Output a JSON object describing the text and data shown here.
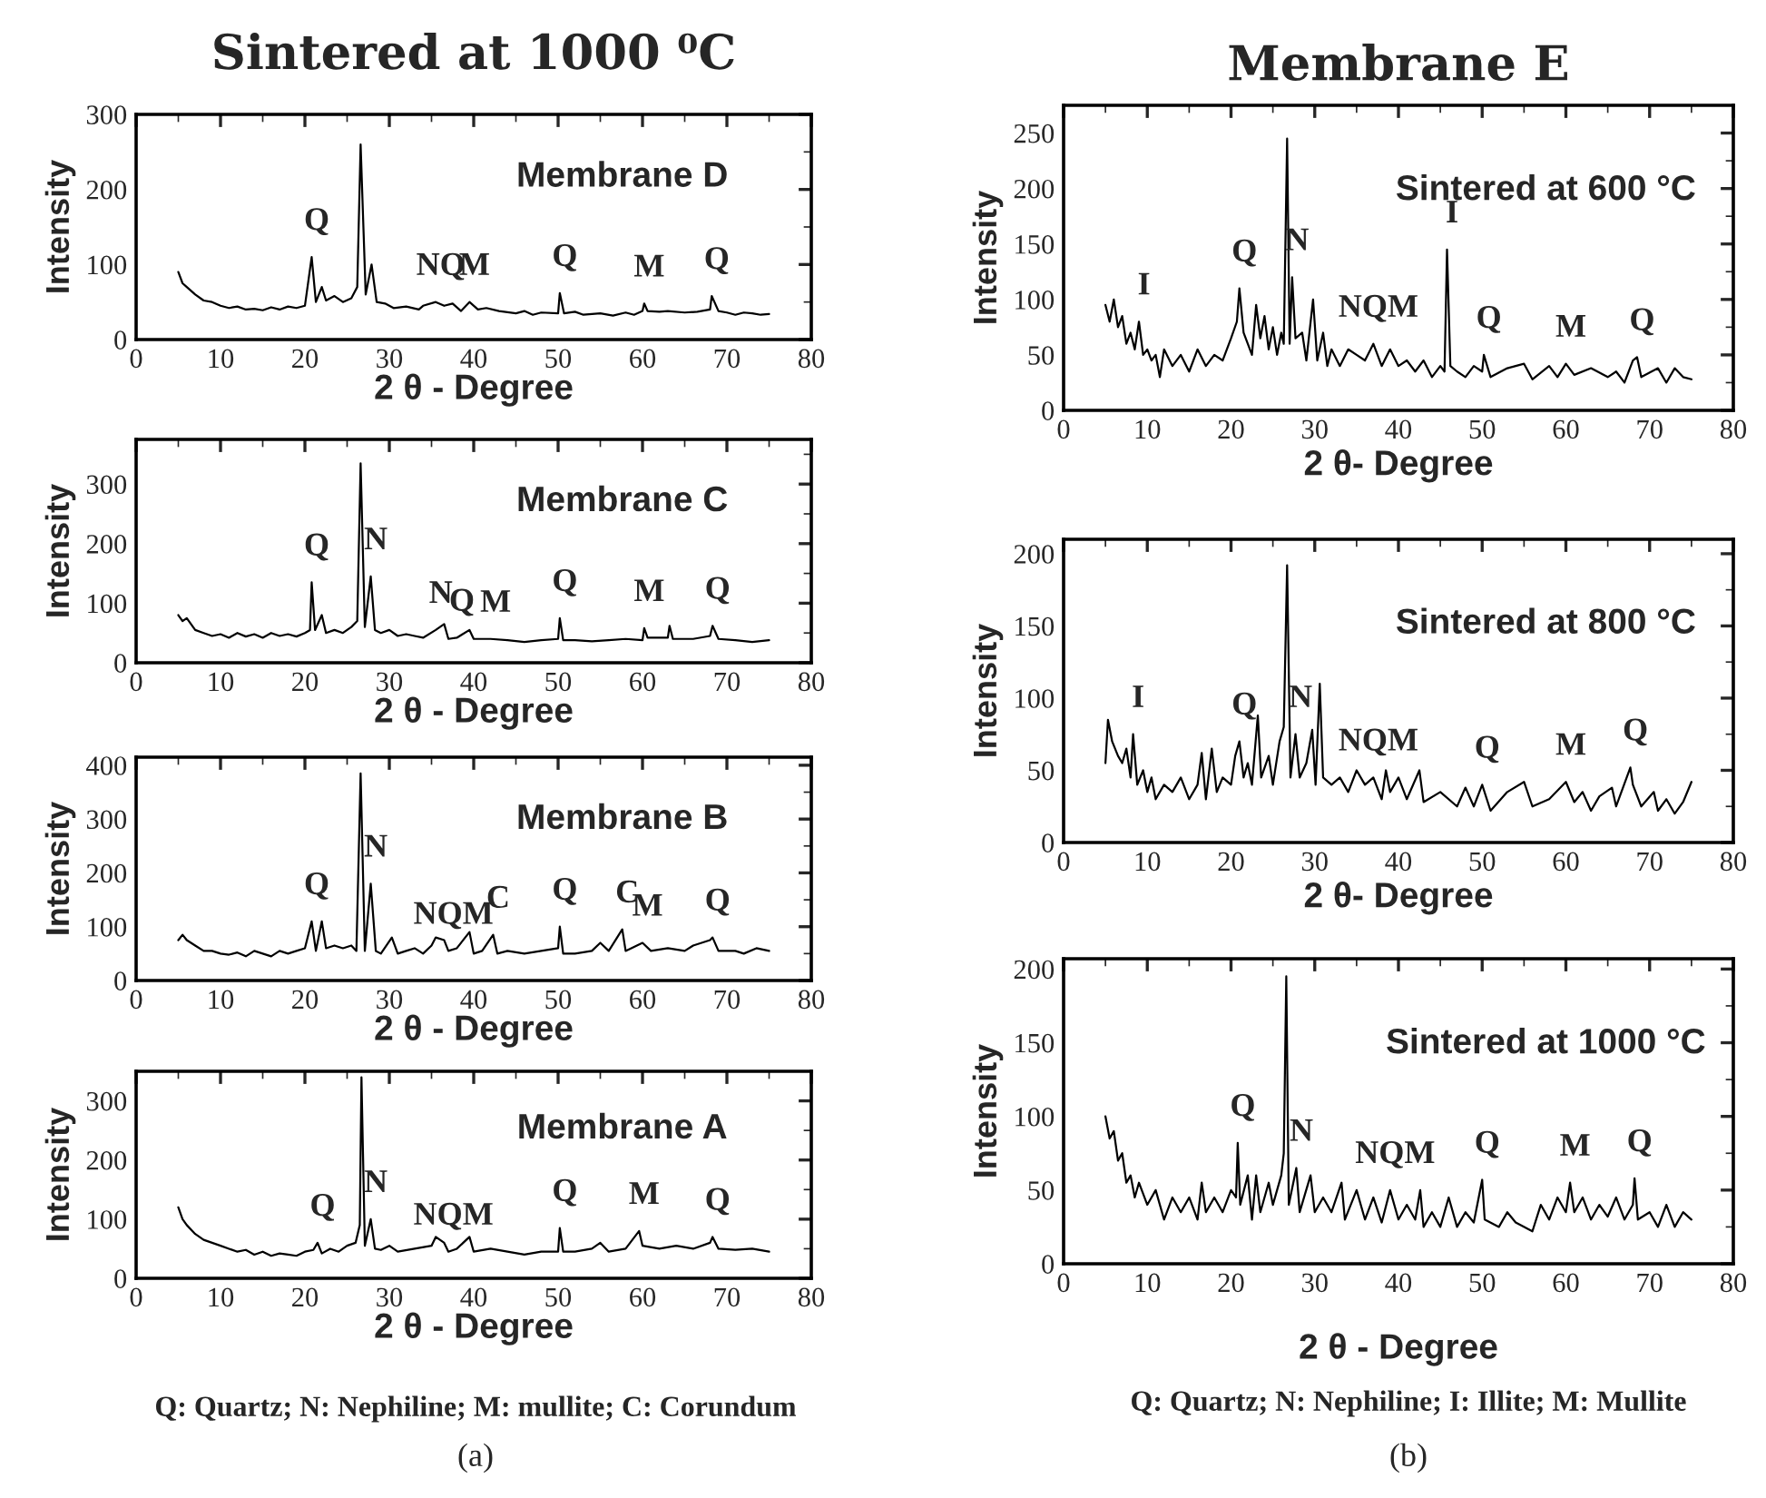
{
  "chart_data": [
    {
      "type": "line",
      "title": "Sintered at 1000 ⁰C",
      "xlabel": "2 θ - Degree",
      "ylabel": "Intensity",
      "xlim": [
        0,
        80
      ],
      "xticks": [
        0,
        10,
        20,
        30,
        40,
        50,
        60,
        70,
        80
      ],
      "ylim": [
        0,
        300
      ],
      "yticks": [
        0,
        100,
        200,
        300
      ],
      "series": [
        {
          "color": "#000000",
          "x": [
            5,
            5.5,
            6,
            7,
            8,
            9,
            10,
            11,
            12,
            13,
            14,
            15,
            16,
            17,
            18,
            19,
            20,
            20.8,
            21.3,
            22,
            22.5,
            23.5,
            24.5,
            25.5,
            26.2,
            26.6,
            27.2,
            27.9,
            28.5,
            29.5,
            30.5,
            32,
            33.5,
            34,
            35.5,
            36.5,
            37.5,
            38.5,
            39.5,
            40.5,
            41.5,
            43,
            45,
            46,
            47,
            48,
            50,
            50.2,
            50.7,
            52,
            53,
            55,
            56.5,
            58,
            59,
            60,
            60.2,
            60.6,
            62,
            63,
            65,
            66.5,
            68,
            68.2,
            69,
            70,
            71,
            72,
            73,
            74,
            75
          ],
          "values": [
            90,
            75,
            70,
            60,
            52,
            50,
            45,
            42,
            44,
            40,
            41,
            39,
            43,
            40,
            44,
            42,
            45,
            110,
            50,
            70,
            52,
            58,
            50,
            55,
            70,
            260,
            60,
            100,
            50,
            48,
            42,
            44,
            40,
            45,
            50,
            45,
            48,
            38,
            50,
            40,
            42,
            38,
            35,
            38,
            33,
            36,
            35,
            62,
            35,
            37,
            33,
            35,
            32,
            36,
            33,
            38,
            48,
            38,
            37,
            38,
            36,
            37,
            40,
            58,
            38,
            36,
            33,
            36,
            35,
            33,
            34
          ]
        }
      ],
      "annotations": [
        "Membrane D",
        {
          "text": "Q",
          "x": 20.8,
          "y": 110
        },
        {
          "text": "NQ",
          "x": 35.5,
          "y": 50
        },
        {
          "text": "M",
          "x": 39.5,
          "y": 50
        },
        {
          "text": "Q",
          "x": 50.2,
          "y": 62
        },
        {
          "text": "M",
          "x": 60.2,
          "y": 48
        },
        {
          "text": "Q",
          "x": 68.2,
          "y": 58
        }
      ]
    },
    {
      "type": "line",
      "xlabel": "2 θ - Degree",
      "ylabel": "Intensity",
      "xlim": [
        0,
        80
      ],
      "xticks": [
        0,
        10,
        20,
        30,
        40,
        50,
        60,
        70,
        80
      ],
      "ylim": [
        0,
        375
      ],
      "yticks": [
        0,
        100,
        200,
        300
      ],
      "series": [
        {
          "color": "#000000",
          "x": [
            5,
            5.5,
            6,
            7,
            8,
            9,
            10,
            11,
            12,
            13,
            14,
            15,
            16,
            17,
            18,
            19,
            20,
            20.6,
            20.8,
            21.2,
            22,
            22.5,
            23.5,
            24.5,
            25.5,
            26.2,
            26.6,
            27.1,
            27.8,
            28.3,
            29,
            30,
            31,
            32,
            33,
            34,
            35.5,
            36.5,
            37,
            38,
            39.5,
            40,
            42,
            44,
            46,
            48,
            50,
            50.2,
            50.6,
            52,
            54,
            56,
            58,
            60,
            60.2,
            60.6,
            63,
            63.2,
            63.6,
            66,
            68,
            68.3,
            69,
            71,
            73,
            75
          ],
          "values": [
            80,
            70,
            75,
            55,
            50,
            45,
            48,
            42,
            50,
            44,
            48,
            42,
            50,
            45,
            48,
            44,
            50,
            55,
            135,
            55,
            80,
            50,
            55,
            50,
            60,
            70,
            335,
            60,
            145,
            55,
            50,
            55,
            45,
            48,
            45,
            42,
            55,
            65,
            40,
            42,
            55,
            40,
            40,
            38,
            35,
            38,
            40,
            75,
            38,
            38,
            36,
            38,
            40,
            38,
            58,
            42,
            42,
            62,
            40,
            40,
            45,
            62,
            40,
            38,
            35,
            38
          ]
        }
      ],
      "annotations": [
        "Membrane C",
        {
          "text": "Q",
          "x": 20.8,
          "y": 135
        },
        {
          "text": "N",
          "x": 27.8,
          "y": 145
        },
        {
          "text": "N",
          "x": 35.5,
          "y": 55
        },
        {
          "text": "Q",
          "x": 38,
          "y": 42
        },
        {
          "text": "M",
          "x": 42,
          "y": 40
        },
        {
          "text": "Q",
          "x": 50.2,
          "y": 75
        },
        {
          "text": "M",
          "x": 60.2,
          "y": 58
        },
        {
          "text": "Q",
          "x": 68.3,
          "y": 62
        }
      ]
    },
    {
      "type": "line",
      "xlabel": "2 θ - Degree",
      "ylabel": "Intensity",
      "xlim": [
        0,
        80
      ],
      "xticks": [
        0,
        10,
        20,
        30,
        40,
        50,
        60,
        70,
        80
      ],
      "ylim": [
        0,
        415
      ],
      "yticks": [
        0,
        100,
        200,
        300,
        400
      ],
      "series": [
        {
          "color": "#000000",
          "x": [
            5,
            5.5,
            6,
            7,
            8,
            9,
            10,
            11,
            12,
            13,
            14,
            15,
            16,
            17,
            18,
            19,
            20,
            20.8,
            21.3,
            22,
            22.5,
            23.5,
            24.5,
            25.5,
            26.1,
            26.6,
            27.1,
            27.8,
            28.4,
            29,
            30.3,
            31,
            32,
            33,
            34,
            35,
            35.5,
            36.5,
            37,
            38,
            39.5,
            40,
            41,
            42.3,
            42.8,
            44,
            46,
            48,
            50,
            50.2,
            50.6,
            52,
            54,
            55,
            56,
            57.6,
            58,
            60,
            61,
            63,
            65,
            66,
            68,
            68.3,
            69,
            71,
            72,
            73.5,
            75
          ],
          "values": [
            75,
            85,
            75,
            65,
            55,
            55,
            50,
            48,
            52,
            45,
            55,
            50,
            45,
            55,
            50,
            55,
            60,
            110,
            55,
            110,
            60,
            65,
            60,
            65,
            55,
            385,
            55,
            180,
            55,
            50,
            80,
            50,
            55,
            60,
            50,
            65,
            80,
            75,
            55,
            60,
            90,
            50,
            55,
            85,
            50,
            55,
            50,
            55,
            60,
            100,
            50,
            50,
            55,
            70,
            55,
            95,
            55,
            70,
            55,
            60,
            55,
            65,
            75,
            80,
            55,
            55,
            50,
            60,
            55
          ]
        }
      ],
      "annotations": [
        "Membrane B",
        {
          "text": "Q",
          "x": 20.8,
          "y": 110
        },
        {
          "text": "N",
          "x": 27.8,
          "y": 180
        },
        {
          "text": "NQM",
          "x": 37,
          "y": 55
        },
        {
          "text": "C",
          "x": 42.3,
          "y": 85
        },
        {
          "text": "Q",
          "x": 50.2,
          "y": 100
        },
        {
          "text": "C",
          "x": 57.6,
          "y": 95
        },
        {
          "text": "M",
          "x": 60,
          "y": 70
        },
        {
          "text": "Q",
          "x": 68.3,
          "y": 80
        }
      ]
    },
    {
      "type": "line",
      "xlabel": "2 θ - Degree",
      "ylabel": "Intensity",
      "xlim": [
        0,
        80
      ],
      "xticks": [
        0,
        10,
        20,
        30,
        40,
        50,
        60,
        70,
        80
      ],
      "ylim": [
        0,
        350
      ],
      "yticks": [
        0,
        100,
        200,
        300
      ],
      "series": [
        {
          "color": "#000000",
          "x": [
            5,
            5.5,
            6,
            7,
            8,
            9,
            10,
            11,
            12,
            13,
            14,
            15,
            16,
            17,
            18,
            19,
            20,
            21,
            21.5,
            22,
            23,
            24,
            25,
            26,
            26.5,
            26.7,
            27.1,
            27.8,
            28.3,
            29,
            30,
            31,
            33,
            35,
            35.5,
            36.5,
            37,
            38,
            39.5,
            40,
            42,
            44,
            46,
            48,
            50,
            50.2,
            50.6,
            52,
            54,
            55,
            56,
            58,
            59.6,
            60,
            62,
            64,
            66,
            68,
            68.3,
            69,
            71,
            73,
            75
          ],
          "values": [
            120,
            100,
            90,
            75,
            65,
            60,
            55,
            50,
            45,
            48,
            40,
            45,
            38,
            42,
            40,
            38,
            45,
            48,
            60,
            42,
            50,
            45,
            55,
            60,
            90,
            340,
            55,
            100,
            50,
            48,
            55,
            45,
            50,
            55,
            70,
            60,
            45,
            50,
            70,
            45,
            50,
            45,
            40,
            45,
            45,
            85,
            45,
            45,
            50,
            60,
            45,
            50,
            80,
            55,
            50,
            55,
            50,
            60,
            70,
            50,
            48,
            50,
            45
          ]
        }
      ],
      "annotations": [
        "Membrane A",
        {
          "text": "Q",
          "x": 21.5,
          "y": 60
        },
        {
          "text": "N",
          "x": 27.8,
          "y": 100
        },
        {
          "text": "NQM",
          "x": 37,
          "y": 45
        },
        {
          "text": "Q",
          "x": 50.2,
          "y": 85
        },
        {
          "text": "M",
          "x": 59.6,
          "y": 80
        },
        {
          "text": "Q",
          "x": 68.3,
          "y": 70
        },
        "Q: Quartz; N: Nephiline; M: mullite; C: Corundum",
        "(a)"
      ]
    },
    {
      "type": "line",
      "title": "Membrane E",
      "xlabel": "2 θ- Degree",
      "ylabel": "Intensity",
      "xlim": [
        0,
        80
      ],
      "xticks": [
        0,
        10,
        20,
        30,
        40,
        50,
        60,
        70,
        80
      ],
      "ylim": [
        0,
        275
      ],
      "yticks": [
        0,
        50,
        100,
        150,
        200,
        250
      ],
      "series": [
        {
          "color": "#000000",
          "x": [
            5,
            5.5,
            6,
            6.5,
            7,
            7.5,
            8,
            8.5,
            9,
            9.5,
            10,
            10.5,
            11,
            11.5,
            12,
            13,
            14,
            15,
            16,
            17,
            18,
            19,
            20,
            20.7,
            21,
            21.5,
            22,
            22.5,
            23,
            23.5,
            24,
            24.5,
            25,
            25.5,
            26,
            26.3,
            26.7,
            27,
            27.3,
            27.7,
            28.5,
            29,
            29.8,
            30.3,
            31,
            31.5,
            32,
            33,
            34,
            35,
            36,
            37,
            38,
            39,
            40,
            41,
            42,
            43,
            44,
            45,
            45.5,
            45.8,
            46.2,
            47,
            48,
            49,
            50,
            50.2,
            51,
            53,
            55,
            56,
            58,
            59,
            60,
            61,
            63,
            65,
            66,
            67,
            68,
            68.5,
            69,
            71,
            72,
            73,
            74,
            75
          ],
          "values": [
            95,
            80,
            100,
            75,
            85,
            60,
            70,
            55,
            80,
            50,
            55,
            45,
            50,
            30,
            55,
            40,
            50,
            35,
            55,
            40,
            50,
            45,
            65,
            80,
            110,
            70,
            60,
            50,
            95,
            65,
            85,
            55,
            75,
            50,
            70,
            60,
            245,
            60,
            120,
            65,
            70,
            45,
            100,
            45,
            70,
            40,
            55,
            40,
            55,
            50,
            45,
            60,
            40,
            55,
            40,
            45,
            35,
            45,
            30,
            40,
            35,
            145,
            40,
            35,
            30,
            40,
            35,
            50,
            30,
            38,
            42,
            28,
            40,
            30,
            42,
            32,
            38,
            30,
            35,
            25,
            45,
            48,
            30,
            38,
            25,
            38,
            30,
            28
          ]
        }
      ],
      "annotations": [
        "Sintered at 600 °C",
        {
          "text": "I",
          "x": 9,
          "y": 80
        },
        {
          "text": "Q",
          "x": 21,
          "y": 110
        },
        {
          "text": "N",
          "x": 27.3,
          "y": 120
        },
        {
          "text": "NQM",
          "x": 37,
          "y": 60
        },
        {
          "text": "I",
          "x": 45.8,
          "y": 145
        },
        {
          "text": "Q",
          "x": 50.2,
          "y": 50
        },
        {
          "text": "M",
          "x": 60,
          "y": 42
        },
        {
          "text": "Q",
          "x": 68.5,
          "y": 48
        }
      ]
    },
    {
      "type": "line",
      "xlabel": "2 θ- Degree",
      "ylabel": "Intensity",
      "xlim": [
        0,
        80
      ],
      "xticks": [
        0,
        10,
        20,
        30,
        40,
        50,
        60,
        70,
        80
      ],
      "ylim": [
        0,
        210
      ],
      "yticks": [
        0,
        50,
        100,
        150,
        200
      ],
      "series": [
        {
          "color": "#000000",
          "x": [
            5,
            5.3,
            5.8,
            6.5,
            7,
            7.5,
            8,
            8.3,
            8.8,
            9.5,
            10,
            10.5,
            11,
            12,
            13,
            14,
            15,
            16,
            16.5,
            17,
            17.7,
            18.3,
            19,
            20,
            20.5,
            21,
            21.5,
            22,
            22.5,
            23.2,
            23.6,
            24.5,
            25,
            25.8,
            26.3,
            26.7,
            27.1,
            27.7,
            28.2,
            29,
            29.7,
            30.1,
            30.6,
            31,
            32,
            33,
            34,
            35,
            36,
            37,
            38,
            38.5,
            39,
            40,
            41,
            42.5,
            43,
            45,
            47,
            48,
            49,
            50,
            51,
            53,
            55,
            56,
            58,
            60,
            61,
            62,
            63,
            64,
            65.5,
            66,
            67.7,
            68,
            69,
            70.5,
            71,
            72,
            73,
            74,
            75
          ],
          "values": [
            55,
            85,
            70,
            60,
            55,
            65,
            45,
            75,
            40,
            50,
            35,
            45,
            30,
            40,
            35,
            45,
            30,
            40,
            62,
            30,
            65,
            35,
            45,
            40,
            60,
            70,
            45,
            55,
            40,
            88,
            45,
            60,
            40,
            70,
            80,
            192,
            45,
            75,
            45,
            55,
            78,
            40,
            110,
            45,
            40,
            45,
            35,
            50,
            40,
            45,
            30,
            50,
            35,
            45,
            30,
            50,
            28,
            35,
            25,
            38,
            25,
            40,
            22,
            35,
            42,
            25,
            30,
            42,
            28,
            35,
            22,
            32,
            38,
            25,
            52,
            40,
            25,
            35,
            22,
            30,
            20,
            28,
            42
          ]
        }
      ],
      "annotations": [
        "Sintered at 800 °C",
        {
          "text": "I",
          "x": 8.3,
          "y": 75
        },
        {
          "text": "Q",
          "x": 21,
          "y": 70
        },
        {
          "text": "N",
          "x": 27.7,
          "y": 75
        },
        {
          "text": "NQM",
          "x": 37,
          "y": 45
        },
        {
          "text": "Q",
          "x": 50,
          "y": 40
        },
        {
          "text": "M",
          "x": 60,
          "y": 42
        },
        {
          "text": "Q",
          "x": 67.7,
          "y": 52
        }
      ]
    },
    {
      "type": "line",
      "xlabel": "2 θ - Degree",
      "ylabel": "Intensity",
      "xlim": [
        0,
        80
      ],
      "xticks": [
        0,
        10,
        20,
        30,
        40,
        50,
        60,
        70,
        80
      ],
      "ylim": [
        0,
        207
      ],
      "yticks": [
        0,
        50,
        100,
        150,
        200
      ],
      "series": [
        {
          "color": "#000000",
          "x": [
            5,
            5.5,
            6,
            6.5,
            7,
            7.5,
            8,
            8.5,
            9,
            10,
            11,
            12,
            13,
            14,
            15,
            16,
            16.5,
            17,
            18,
            19,
            20,
            20.6,
            20.8,
            21.1,
            22,
            22.5,
            23,
            23.5,
            24.5,
            25,
            26,
            26.3,
            26.6,
            26.9,
            27.8,
            28.2,
            29.5,
            30,
            31,
            32,
            33.2,
            33.6,
            35,
            36,
            37,
            38,
            39,
            40,
            41,
            42,
            42.6,
            43,
            44,
            45,
            46,
            47,
            48,
            49,
            50,
            50.3,
            52,
            53,
            54,
            56,
            57,
            58,
            59,
            60,
            60.5,
            61,
            62,
            63,
            64,
            65,
            66,
            67,
            68,
            68.2,
            68.6,
            70,
            71,
            72,
            73,
            74,
            75
          ],
          "values": [
            100,
            85,
            90,
            70,
            75,
            55,
            60,
            45,
            55,
            40,
            50,
            30,
            45,
            35,
            45,
            30,
            55,
            35,
            45,
            35,
            50,
            45,
            82,
            40,
            60,
            30,
            60,
            35,
            55,
            40,
            60,
            75,
            195,
            40,
            65,
            35,
            60,
            35,
            45,
            35,
            55,
            30,
            50,
            30,
            45,
            28,
            50,
            30,
            40,
            30,
            50,
            25,
            35,
            25,
            45,
            25,
            35,
            28,
            57,
            30,
            25,
            35,
            28,
            22,
            40,
            30,
            45,
            35,
            55,
            35,
            45,
            30,
            40,
            32,
            45,
            30,
            40,
            58,
            30,
            35,
            25,
            40,
            25,
            35,
            30
          ]
        }
      ],
      "annotations": [
        "Sintered at 1000 °C",
        {
          "text": "Q",
          "x": 20.8,
          "y": 82
        },
        {
          "text": "N",
          "x": 27.8,
          "y": 65
        },
        {
          "text": "NQM",
          "x": 39,
          "y": 50
        },
        {
          "text": "Q",
          "x": 50,
          "y": 57
        },
        {
          "text": "M",
          "x": 60.5,
          "y": 55
        },
        {
          "text": "Q",
          "x": 68.2,
          "y": 58
        },
        "Q: Quartz; N: Nephiline; I: Illite; M: Mullite",
        "(b)"
      ]
    }
  ]
}
